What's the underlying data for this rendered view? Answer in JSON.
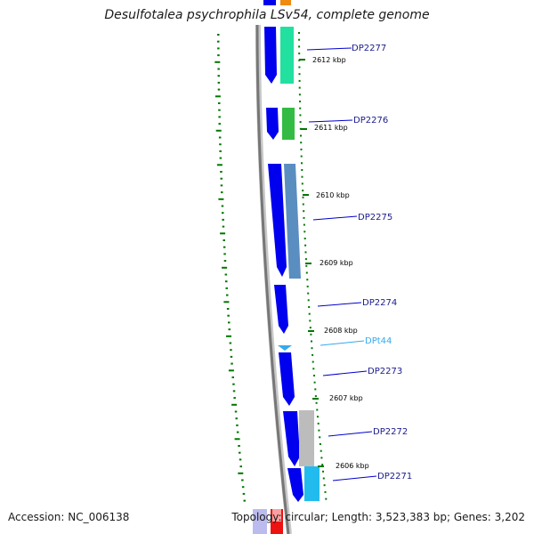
{
  "title": "Desulfotalea psychrophila LSv54, complete genome",
  "footer": {
    "accession": "Accession: NC_006138",
    "topology": "Topology: circular; Length: 3,523,383 bp; Genes: 3,202"
  },
  "genes": [
    {
      "id": "DP2277",
      "color": "#0000ee",
      "label_color": "#1a1a8c"
    },
    {
      "id": "DP2276",
      "color": "#0000ee",
      "label_color": "#1a1a8c"
    },
    {
      "id": "DP2275",
      "color": "#0000ee",
      "label_color": "#1a1a8c"
    },
    {
      "id": "DP2274",
      "color": "#0000ee",
      "label_color": "#1a1a8c"
    },
    {
      "id": "DPt44",
      "color": "#33aaee",
      "label_color": "#33aaee"
    },
    {
      "id": "DP2273",
      "color": "#0000ee",
      "label_color": "#1a1a8c"
    },
    {
      "id": "DP2272",
      "color": "#0000ee",
      "label_color": "#1a1a8c"
    },
    {
      "id": "DP2271",
      "color": "#0000ee",
      "label_color": "#1a1a8c"
    }
  ],
  "kbp_ticks": [
    "2612 kbp",
    "2611 kbp",
    "2610 kbp",
    "2609 kbp",
    "2608 kbp",
    "2607 kbp",
    "2606 kbp"
  ],
  "colors": {
    "backbone": "#888888",
    "strand_minus": "#0000ee",
    "tick_green": "#007700",
    "leader_line": "#0000cc"
  }
}
